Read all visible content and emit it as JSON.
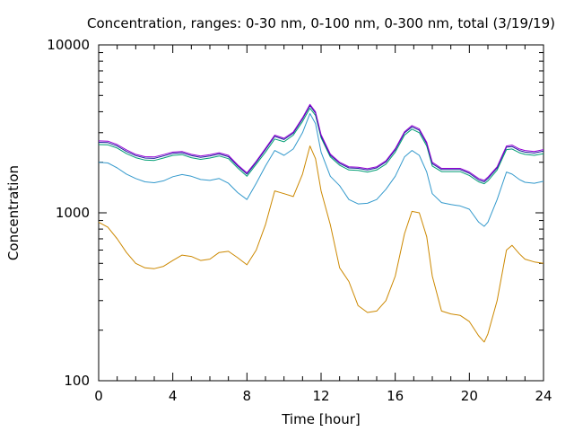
{
  "chart_data": {
    "type": "line",
    "title": "Concentration, ranges: 0-30 nm, 0-100 nm, 0-300 nm, total (3/19/19)",
    "xlabel": "Time [hour]",
    "ylabel": "Concentration",
    "xlim": [
      0,
      24
    ],
    "ylim": [
      100,
      10000
    ],
    "yscale": "log",
    "grid": false,
    "legend": "none",
    "x_ticks": [
      0,
      4,
      8,
      12,
      16,
      20,
      24
    ],
    "x_tick_labels": [
      "0",
      "4",
      "8",
      "12",
      "16",
      "20",
      "24"
    ],
    "y_ticks": [
      100,
      1000,
      10000
    ],
    "y_tick_labels": [
      "100",
      "1000",
      "10000"
    ],
    "series": [
      {
        "color": "#cc8800",
        "x": [
          0,
          0.5,
          1,
          1.5,
          2,
          2.5,
          3,
          3.5,
          4,
          4.5,
          5,
          5.5,
          6,
          6.5,
          7,
          7.5,
          8,
          8.5,
          9,
          9.5,
          10,
          10.5,
          11,
          11.4,
          11.7,
          12,
          12.5,
          13,
          13.5,
          14,
          14.5,
          15,
          15.5,
          16,
          16.5,
          16.9,
          17.3,
          17.7,
          18,
          18.5,
          19,
          19.5,
          20,
          20.5,
          20.8,
          21,
          21.5,
          22,
          22.3,
          22.7,
          23,
          23.5,
          24
        ],
        "values": [
          880,
          820,
          700,
          580,
          500,
          470,
          465,
          480,
          520,
          560,
          550,
          520,
          530,
          580,
          590,
          540,
          490,
          600,
          850,
          1350,
          1300,
          1250,
          1700,
          2500,
          2100,
          1350,
          850,
          470,
          390,
          280,
          255,
          260,
          300,
          420,
          750,
          1020,
          1000,
          720,
          420,
          260,
          250,
          245,
          225,
          185,
          170,
          190,
          300,
          600,
          640,
          570,
          530,
          510,
          500
        ]
      },
      {
        "color": "#3399cc",
        "x": [
          0,
          0.5,
          1,
          1.5,
          2,
          2.5,
          3,
          3.5,
          4,
          4.5,
          5,
          5.5,
          6,
          6.5,
          7,
          7.5,
          8,
          8.5,
          9,
          9.5,
          10,
          10.5,
          11,
          11.4,
          11.7,
          12,
          12.5,
          13,
          13.5,
          14,
          14.5,
          15,
          15.5,
          16,
          16.5,
          16.9,
          17.3,
          17.7,
          18,
          18.5,
          19,
          19.5,
          20,
          20.5,
          20.8,
          21,
          21.5,
          22,
          22.3,
          22.7,
          23,
          23.5,
          24
        ],
        "values": [
          2000,
          1980,
          1850,
          1700,
          1600,
          1530,
          1510,
          1550,
          1640,
          1690,
          1650,
          1580,
          1560,
          1600,
          1500,
          1320,
          1200,
          1500,
          1900,
          2350,
          2200,
          2400,
          3000,
          3900,
          3400,
          2300,
          1650,
          1450,
          1200,
          1130,
          1140,
          1200,
          1380,
          1650,
          2150,
          2350,
          2200,
          1750,
          1300,
          1150,
          1120,
          1100,
          1050,
          880,
          830,
          880,
          1200,
          1750,
          1700,
          1580,
          1520,
          1500,
          1540
        ]
      },
      {
        "color": "#009e73",
        "x": [
          0,
          0.5,
          1,
          1.5,
          2,
          2.5,
          3,
          3.5,
          4,
          4.5,
          5,
          5.5,
          6,
          6.5,
          7,
          7.5,
          8,
          8.5,
          9,
          9.5,
          10,
          10.5,
          11,
          11.4,
          11.7,
          12,
          12.5,
          13,
          13.5,
          14,
          14.5,
          15,
          15.5,
          16,
          16.5,
          16.9,
          17.3,
          17.7,
          18,
          18.5,
          19,
          19.5,
          20,
          20.5,
          20.8,
          21,
          21.5,
          22,
          22.3,
          22.7,
          23,
          23.5,
          24
        ],
        "values": [
          2550,
          2540,
          2430,
          2250,
          2130,
          2060,
          2050,
          2120,
          2200,
          2220,
          2130,
          2080,
          2120,
          2180,
          2100,
          1850,
          1650,
          1950,
          2300,
          2750,
          2650,
          2900,
          3500,
          4200,
          3800,
          2800,
          2150,
          1920,
          1800,
          1790,
          1750,
          1800,
          1950,
          2300,
          2900,
          3150,
          3000,
          2500,
          1900,
          1760,
          1760,
          1760,
          1670,
          1530,
          1490,
          1550,
          1800,
          2380,
          2400,
          2280,
          2230,
          2200,
          2250
        ]
      },
      {
        "color": "#2020a0",
        "x": [
          0,
          0.5,
          1,
          1.5,
          2,
          2.5,
          3,
          3.5,
          4,
          4.5,
          5,
          5.5,
          6,
          6.5,
          7,
          7.5,
          8,
          8.5,
          9,
          9.5,
          10,
          10.5,
          11,
          11.4,
          11.7,
          12,
          12.5,
          13,
          13.5,
          14,
          14.5,
          15,
          15.5,
          16,
          16.5,
          16.9,
          17.3,
          17.7,
          18,
          18.5,
          19,
          19.5,
          20,
          20.5,
          20.8,
          21,
          21.5,
          22,
          22.3,
          22.7,
          23,
          23.5,
          24
        ],
        "values": [
          2630,
          2620,
          2500,
          2320,
          2190,
          2120,
          2110,
          2180,
          2260,
          2280,
          2190,
          2140,
          2180,
          2240,
          2160,
          1900,
          1700,
          2000,
          2380,
          2850,
          2730,
          2980,
          3620,
          4350,
          3920,
          2870,
          2200,
          1970,
          1850,
          1840,
          1800,
          1850,
          2010,
          2370,
          2990,
          3250,
          3100,
          2580,
          1960,
          1810,
          1810,
          1810,
          1720,
          1570,
          1530,
          1600,
          1850,
          2460,
          2480,
          2350,
          2300,
          2270,
          2330
        ]
      },
      {
        "color": "#9400d3",
        "x": [
          0,
          0.5,
          1,
          1.5,
          2,
          2.5,
          3,
          3.5,
          4,
          4.5,
          5,
          5.5,
          6,
          6.5,
          7,
          7.5,
          8,
          8.5,
          9,
          9.5,
          10,
          10.5,
          11,
          11.4,
          11.7,
          12,
          12.5,
          13,
          13.5,
          14,
          14.5,
          15,
          15.5,
          16,
          16.5,
          16.9,
          17.3,
          17.7,
          18,
          18.5,
          19,
          19.5,
          20,
          20.5,
          20.8,
          21,
          21.5,
          22,
          22.3,
          22.7,
          23,
          23.5,
          24
        ],
        "values": [
          2680,
          2670,
          2550,
          2370,
          2230,
          2160,
          2150,
          2220,
          2300,
          2320,
          2230,
          2180,
          2220,
          2280,
          2200,
          1930,
          1730,
          2030,
          2420,
          2900,
          2780,
          3030,
          3680,
          4420,
          3990,
          2920,
          2240,
          2000,
          1880,
          1870,
          1830,
          1880,
          2040,
          2410,
          3040,
          3310,
          3160,
          2630,
          2000,
          1840,
          1840,
          1840,
          1750,
          1600,
          1560,
          1630,
          1880,
          2500,
          2530,
          2400,
          2350,
          2320,
          2380
        ]
      }
    ]
  }
}
